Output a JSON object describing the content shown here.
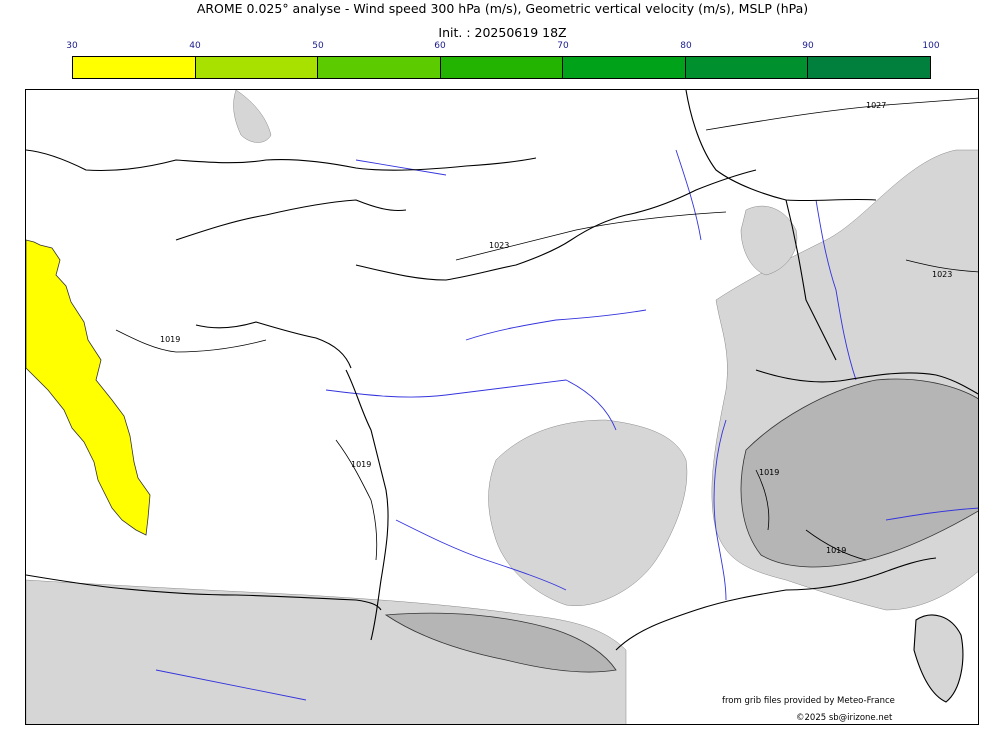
{
  "header": {
    "title": "AROME 0.025° analyse - Wind speed 300 hPa (m/s), Geometric vertical velocity (m/s), MSLP (hPa)",
    "subtitle": "Init. : 20250619 18Z"
  },
  "colorbar": {
    "ticks": [
      "30",
      "40",
      "50",
      "60",
      "70",
      "80",
      "90",
      "100"
    ],
    "colors": [
      "#ffff00",
      "#a8e000",
      "#5ccc00",
      "#22b400",
      "#00a21a",
      "#00912e",
      "#00803c",
      "#00704a"
    ]
  },
  "map": {
    "isobar_labels": [
      "1027",
      "1023",
      "1023",
      "1019",
      "1019",
      "1019",
      "1019"
    ],
    "colors": {
      "coastline": "#000000",
      "rivers": "#3333dd",
      "terrain_light": "#d6d6d6",
      "terrain_dark": "#b5b5b5",
      "jet_max": "#ffff00"
    }
  },
  "credits": {
    "source": "from grib files provided by Meteo-France",
    "copyright": "©2025 sb@irizone.net"
  }
}
